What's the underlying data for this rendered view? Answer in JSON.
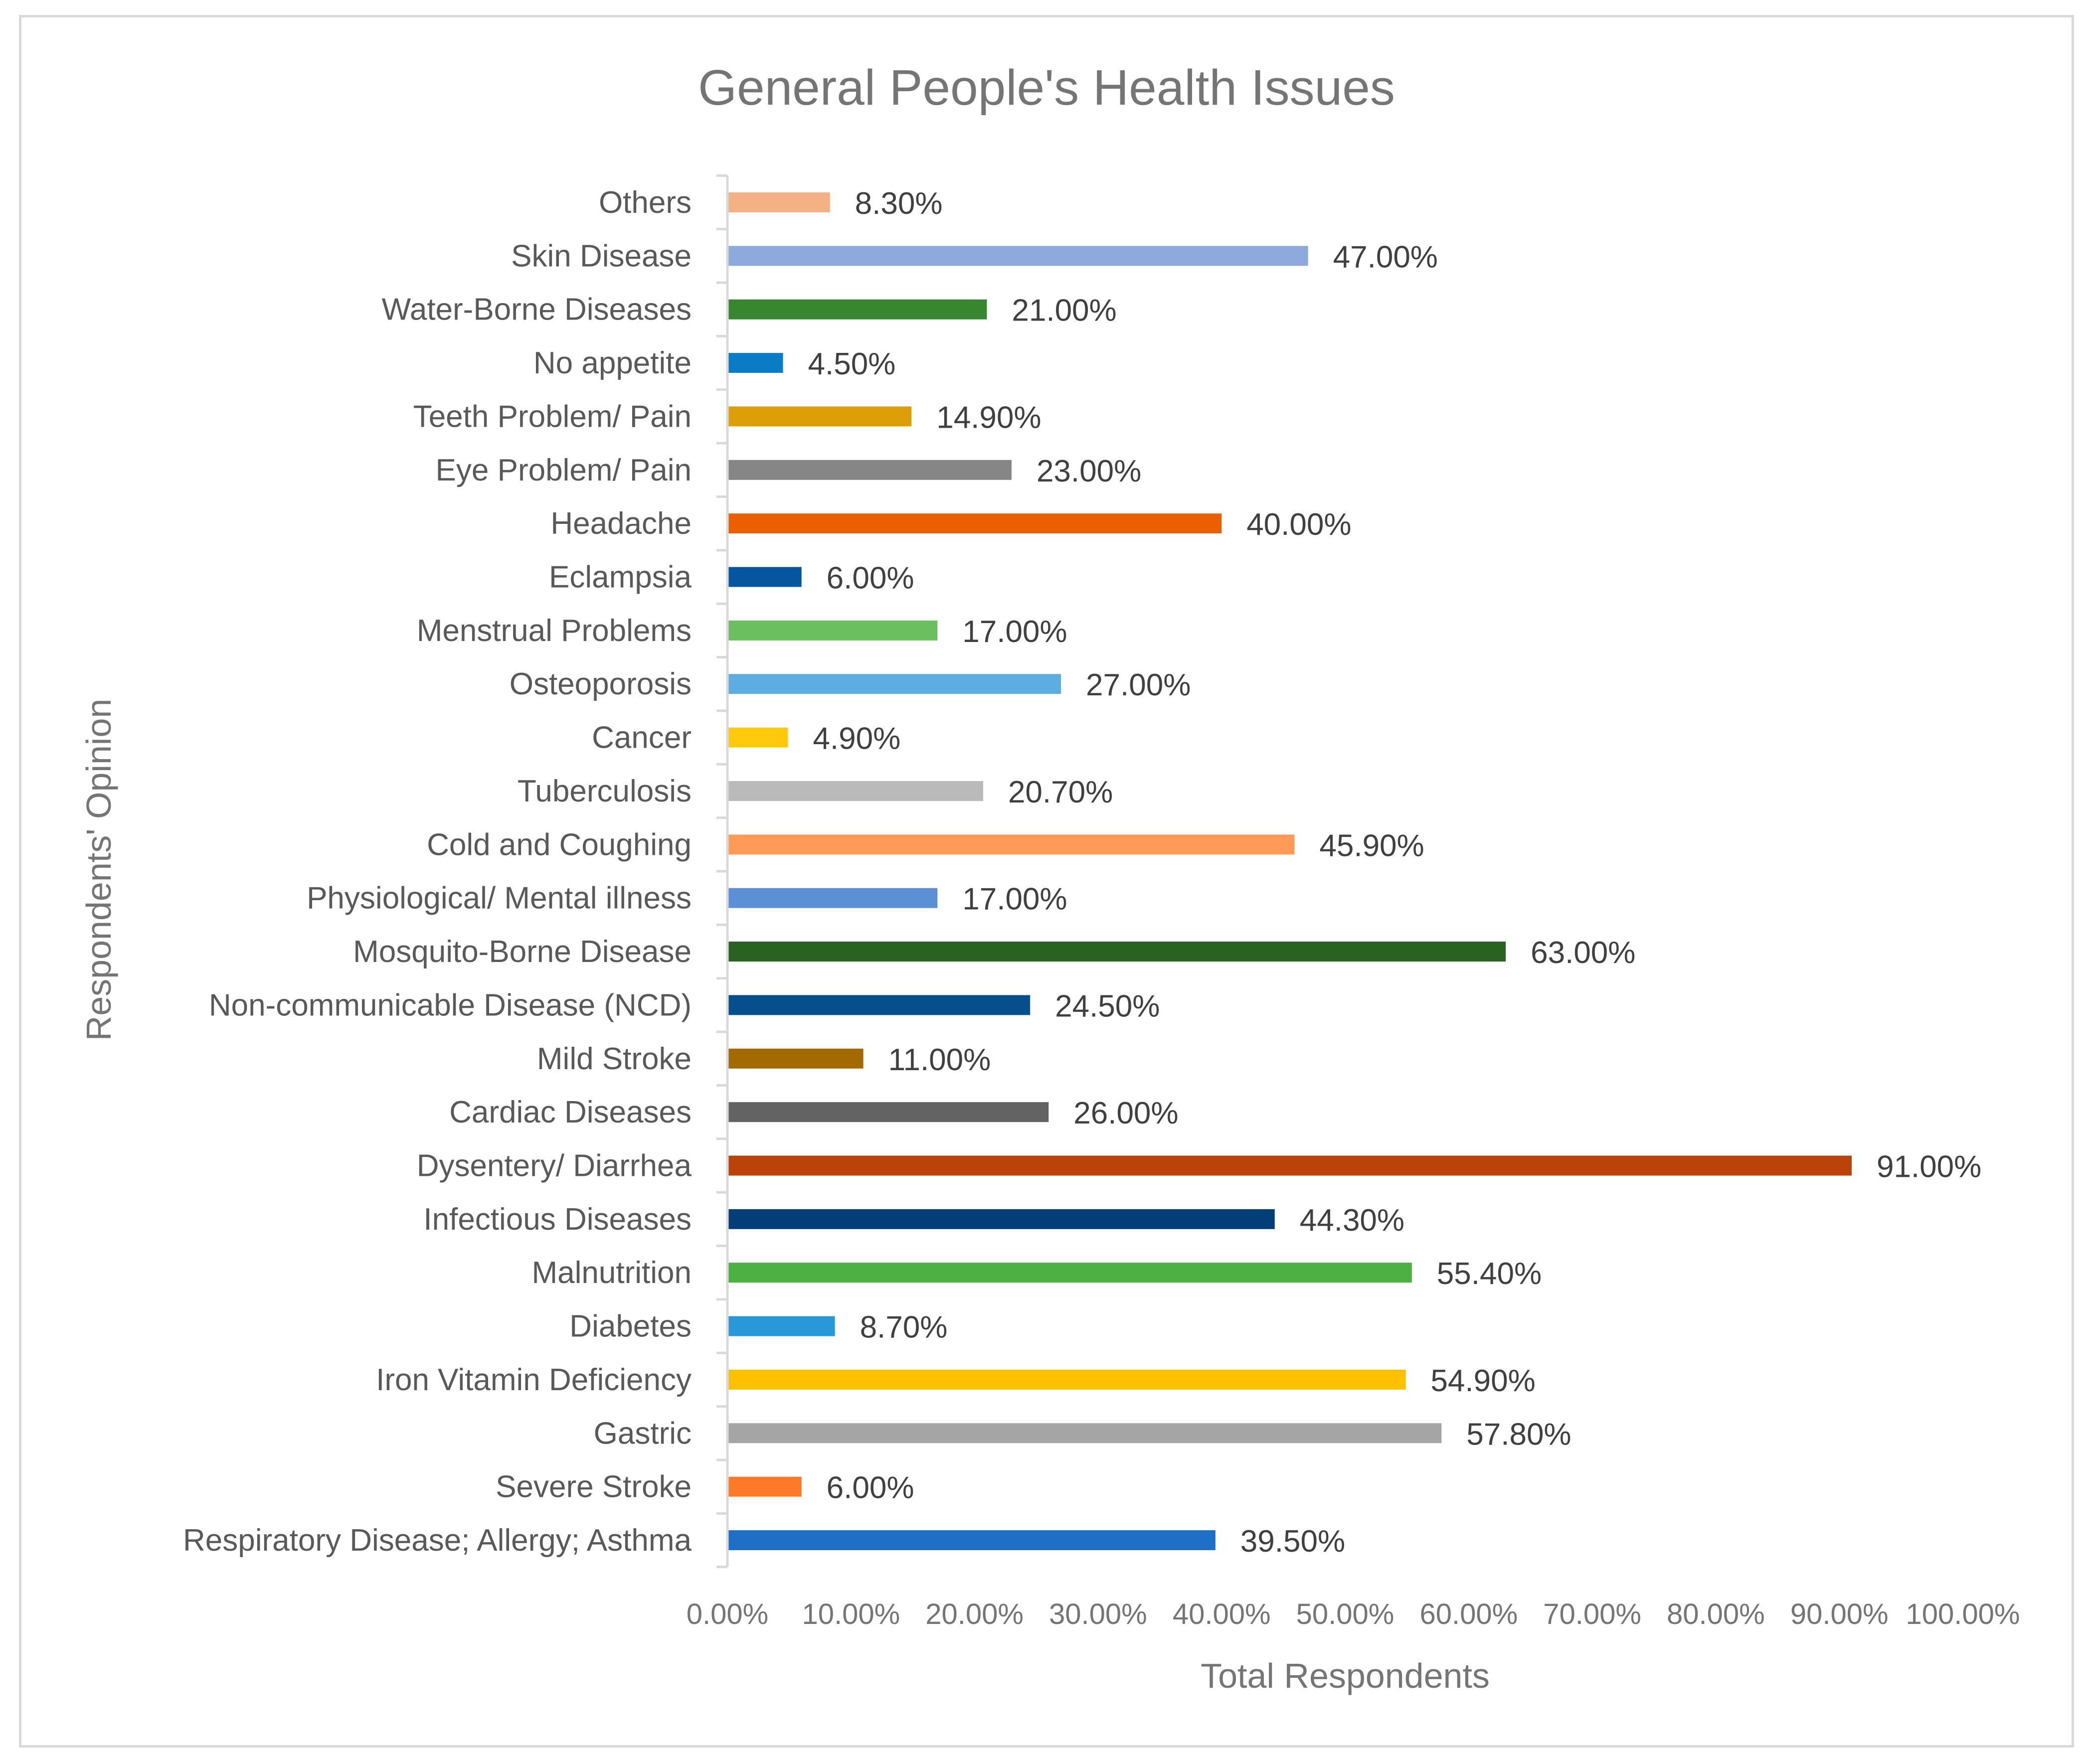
{
  "chart_data": {
    "type": "bar",
    "orientation": "horizontal",
    "title": "General People's Health Issues",
    "xlabel": "Total Respondents",
    "ylabel": "Respondents' Opinion",
    "xlim": [
      0,
      100
    ],
    "x_tick_values": [
      0,
      10,
      20,
      30,
      40,
      50,
      60,
      70,
      80,
      90,
      100
    ],
    "x_tick_labels": [
      "0.00%",
      "10.00%",
      "20.00%",
      "30.00%",
      "40.00%",
      "50.00%",
      "60.00%",
      "70.00%",
      "80.00%",
      "90.00%",
      "100.00%"
    ],
    "grid": false,
    "legend": "none",
    "categories": [
      "Others",
      "Skin Disease",
      "Water-Borne Diseases",
      "No appetite",
      "Teeth Problem/ Pain",
      "Eye Problem/ Pain",
      "Headache",
      "Eclampsia",
      "Menstrual Problems",
      "Osteoporosis",
      "Cancer",
      "Tuberculosis",
      "Cold and Coughing",
      "Physiological/ Mental illness",
      "Mosquito-Borne Disease",
      "Non-communicable Disease (NCD)",
      "Mild Stroke",
      "Cardiac Diseases",
      "Dysentery/ Diarrhea",
      "Infectious Diseases",
      "Malnutrition",
      "Diabetes",
      "Iron Vitamin Deficiency",
      "Gastric",
      "Severe Stroke",
      "Respiratory Disease; Allergy; Asthma"
    ],
    "values": [
      8.3,
      47.0,
      21.0,
      4.5,
      14.9,
      23.0,
      40.0,
      6.0,
      17.0,
      27.0,
      4.9,
      20.7,
      45.9,
      17.0,
      63.0,
      24.5,
      11.0,
      26.0,
      91.0,
      44.3,
      55.4,
      8.7,
      54.9,
      57.8,
      6.0,
      39.5
    ],
    "value_labels": [
      "8.30%",
      "47.00%",
      "21.00%",
      "4.50%",
      "14.90%",
      "23.00%",
      "40.00%",
      "6.00%",
      "17.00%",
      "27.00%",
      "4.90%",
      "20.70%",
      "45.90%",
      "17.00%",
      "63.00%",
      "24.50%",
      "11.00%",
      "26.00%",
      "91.00%",
      "44.30%",
      "55.40%",
      "8.70%",
      "54.90%",
      "57.80%",
      "6.00%",
      "39.50%"
    ],
    "colors": [
      "#F4B183",
      "#8EA9DB",
      "#38862F",
      "#0A7BC5",
      "#DE9E08",
      "#868686",
      "#EB5F00",
      "#06559F",
      "#6CBF5E",
      "#5DADE2",
      "#FFC90E",
      "#BABABA",
      "#FF9A58",
      "#5B8FD6",
      "#2A6221",
      "#074F8C",
      "#A26A00",
      "#636363",
      "#BB4309",
      "#033E78",
      "#4CB043",
      "#2898D9",
      "#FFC000",
      "#A5A5A5",
      "#FF7A28",
      "#1F6FC6"
    ]
  }
}
